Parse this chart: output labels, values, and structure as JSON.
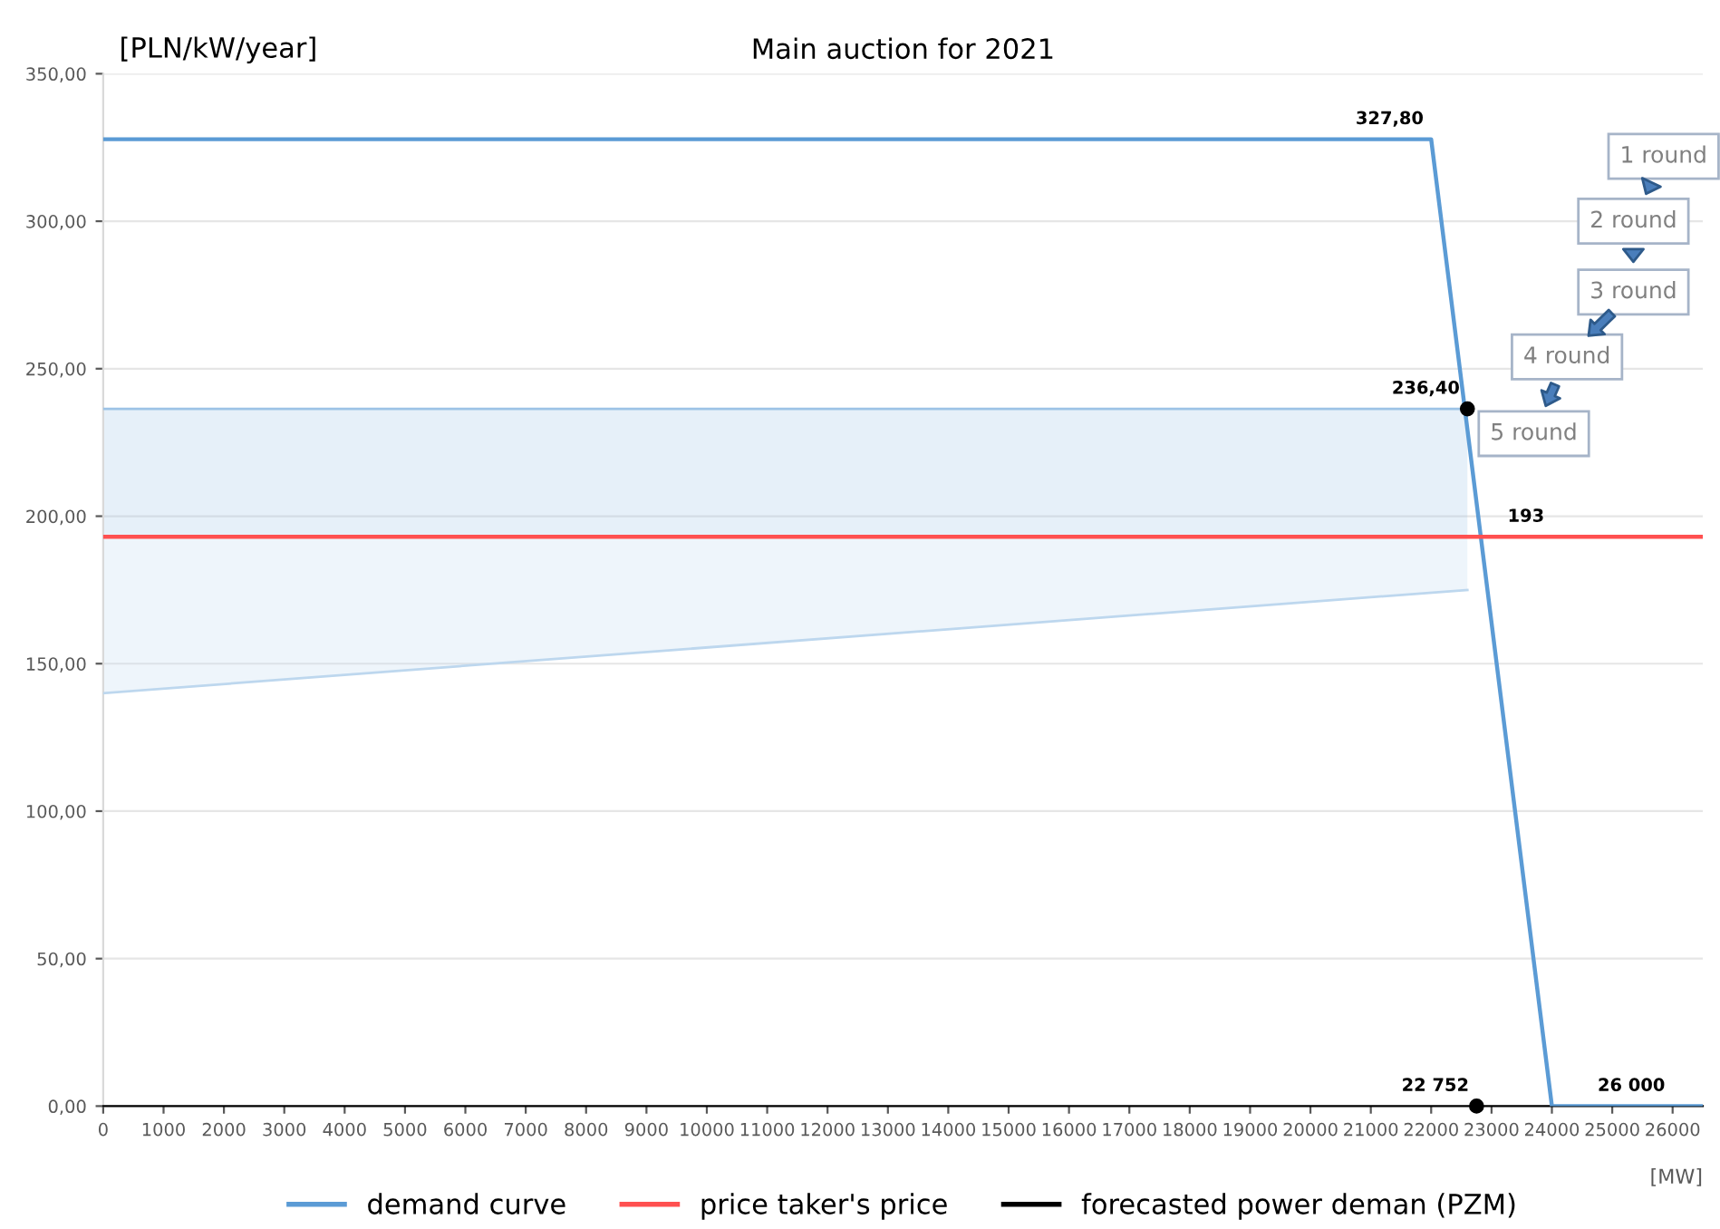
{
  "chart_data": {
    "type": "line",
    "title": "Main auction for 2021",
    "xlabel": "[MW]",
    "ylabel": "[PLN/kW/year]",
    "xlim": [
      0,
      26500
    ],
    "ylim": [
      0,
      350
    ],
    "xticks": [
      0,
      1000,
      2000,
      3000,
      4000,
      5000,
      6000,
      7000,
      8000,
      9000,
      10000,
      11000,
      12000,
      13000,
      14000,
      15000,
      16000,
      17000,
      18000,
      19000,
      20000,
      21000,
      22000,
      23000,
      24000,
      25000,
      26000
    ],
    "yticks": [
      {
        "value": 0,
        "label": "0,00"
      },
      {
        "value": 50,
        "label": "50,00"
      },
      {
        "value": 100,
        "label": "100,00"
      },
      {
        "value": 150,
        "label": "150,00"
      },
      {
        "value": 200,
        "label": "200,00"
      },
      {
        "value": 250,
        "label": "250,00"
      },
      {
        "value": 300,
        "label": "300,00"
      },
      {
        "value": 350,
        "label": "350,00"
      }
    ],
    "grid": "y",
    "legend": "bottom",
    "series": [
      {
        "name": "demand curve",
        "color": "#5b9bd5",
        "x": [
          0,
          22000,
          24000,
          26500
        ],
        "values": [
          327.8,
          327.8,
          0,
          0
        ]
      },
      {
        "type": "line",
        "color": "#9dc3e6",
        "x": [
          0,
          22600
        ],
        "values": [
          236.4,
          236.4
        ],
        "lower": [
          193,
          193
        ],
        "upper": [
          236.4,
          236.4
        ]
      },
      {
        "type": "line",
        "color": "#bdd7ee",
        "x": [
          0,
          22600
        ],
        "values": [
          140,
          175
        ],
        "lower": [
          140,
          175
        ],
        "upper": [
          193,
          193
        ]
      },
      {
        "type": "line",
        "name": "price taker's price",
        "color": "#ff5050",
        "x": [
          0,
          26500
        ],
        "values": [
          193,
          193
        ]
      },
      {
        "type": "scatter",
        "name": "forecasted power deman (PZM)",
        "color": "#000000",
        "x": [
          22752,
          22600
        ],
        "values": [
          0,
          236.4
        ]
      }
    ],
    "annotations": [
      {
        "text": "327,80",
        "x": 22000,
        "y": 327.8
      },
      {
        "text": "236,40",
        "x": 22600,
        "y": 236.4
      },
      {
        "text": "193",
        "x": 24000,
        "y": 193
      },
      {
        "text": "22 752",
        "x": 22752,
        "y": 0
      },
      {
        "text": "26 000",
        "x": 26000,
        "y": 0
      },
      "1 round",
      "2 round",
      "3 round",
      "4 round",
      "5 round"
    ]
  }
}
